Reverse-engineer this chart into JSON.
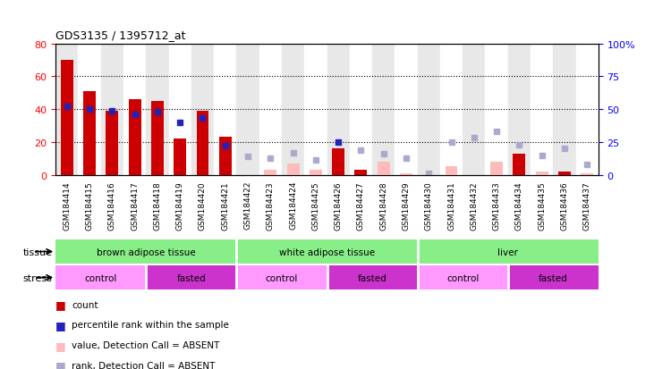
{
  "title": "GDS3135 / 1395712_at",
  "samples": [
    "GSM184414",
    "GSM184415",
    "GSM184416",
    "GSM184417",
    "GSM184418",
    "GSM184419",
    "GSM184420",
    "GSM184421",
    "GSM184422",
    "GSM184423",
    "GSM184424",
    "GSM184425",
    "GSM184426",
    "GSM184427",
    "GSM184428",
    "GSM184429",
    "GSM184430",
    "GSM184431",
    "GSM184432",
    "GSM184433",
    "GSM184434",
    "GSM184435",
    "GSM184436",
    "GSM184437"
  ],
  "count_present": [
    70,
    51,
    39,
    46,
    45,
    22,
    39,
    23,
    0,
    0,
    0,
    0,
    16,
    3,
    0,
    0,
    0,
    0,
    0,
    0,
    13,
    0,
    2,
    0
  ],
  "count_absent": [
    0,
    0,
    0,
    0,
    0,
    0,
    0,
    0,
    0,
    3,
    7,
    3,
    0,
    0,
    8,
    1,
    0,
    5,
    0,
    8,
    0,
    2,
    0,
    1
  ],
  "rank_present": [
    52,
    50,
    49,
    46,
    48,
    40,
    43,
    22,
    0,
    0,
    0,
    0,
    25,
    0,
    0,
    0,
    0,
    0,
    0,
    0,
    0,
    0,
    0,
    0
  ],
  "rank_absent": [
    0,
    0,
    0,
    0,
    0,
    0,
    0,
    0,
    14,
    13,
    17,
    11,
    0,
    19,
    16,
    13,
    1,
    25,
    28,
    33,
    23,
    15,
    20,
    8
  ],
  "tissue_groups": [
    {
      "label": "brown adipose tissue",
      "start": 0,
      "end": 8,
      "color": "#88ee88"
    },
    {
      "label": "white adipose tissue",
      "start": 8,
      "end": 16,
      "color": "#88ee88"
    },
    {
      "label": "liver",
      "start": 16,
      "end": 24,
      "color": "#88ee88"
    }
  ],
  "stress_groups": [
    {
      "label": "control",
      "start": 0,
      "end": 4,
      "color": "#ff99ff"
    },
    {
      "label": "fasted",
      "start": 4,
      "end": 8,
      "color": "#cc33cc"
    },
    {
      "label": "control",
      "start": 8,
      "end": 12,
      "color": "#ff99ff"
    },
    {
      "label": "fasted",
      "start": 12,
      "end": 16,
      "color": "#cc33cc"
    },
    {
      "label": "control",
      "start": 16,
      "end": 20,
      "color": "#ff99ff"
    },
    {
      "label": "fasted",
      "start": 20,
      "end": 24,
      "color": "#cc33cc"
    }
  ],
  "ylim_left": [
    0,
    80
  ],
  "ylim_right": [
    0,
    100
  ],
  "yticks_left": [
    0,
    20,
    40,
    60,
    80
  ],
  "yticks_right": [
    0,
    25,
    50,
    75,
    100
  ],
  "bar_width": 0.55,
  "color_count_present": "#cc0000",
  "color_count_absent": "#ffbbbb",
  "color_rank_present": "#2222bb",
  "color_rank_absent": "#aaaacc",
  "col_bg_even": "#e8e8e8",
  "col_bg_odd": "#ffffff",
  "legend_items": [
    {
      "color": "#cc0000",
      "label": "count"
    },
    {
      "color": "#2222bb",
      "label": "percentile rank within the sample"
    },
    {
      "color": "#ffbbbb",
      "label": "value, Detection Call = ABSENT"
    },
    {
      "color": "#aaaacc",
      "label": "rank, Detection Call = ABSENT"
    }
  ]
}
